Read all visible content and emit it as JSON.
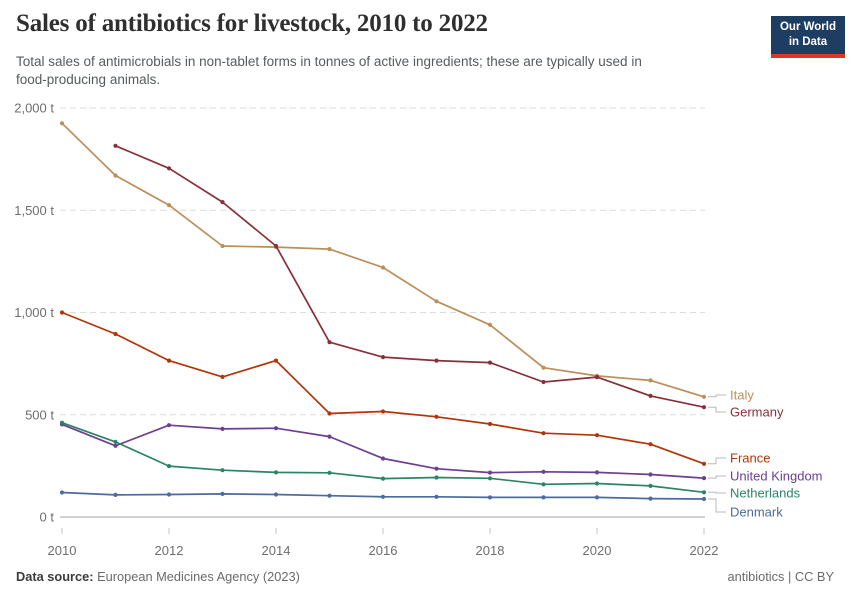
{
  "header": {
    "title": "Sales of antibiotics for livestock, 2010 to 2022",
    "subtitle_lines": [
      "Total sales of antimicrobials in non-tablet forms in tonnes of active ingredients; these are typically used in",
      "food-producing animals."
    ],
    "logo": {
      "line1": "Our World",
      "line2": "in Data",
      "bg_color": "#1d3d63",
      "accent_color": "#dc352c"
    }
  },
  "chart_data": {
    "type": "line",
    "title": "Sales of antibiotics for livestock, 2010 to 2022",
    "unit": "tonnes of active ingredients",
    "x": [
      2010,
      2011,
      2012,
      2013,
      2014,
      2015,
      2016,
      2017,
      2018,
      2019,
      2020,
      2021,
      2022
    ],
    "x_tick_labels": [
      "2010",
      "2012",
      "2014",
      "2016",
      "2018",
      "2020",
      "2022"
    ],
    "y_ticks": [
      {
        "value": 0,
        "label": "0 t"
      },
      {
        "value": 500,
        "label": "500 t"
      },
      {
        "value": 1000,
        "label": "1,000 t"
      },
      {
        "value": 1500,
        "label": "1,500 t"
      },
      {
        "value": 2000,
        "label": "2,000 t"
      }
    ],
    "ylim": [
      0,
      2000
    ],
    "grid": "horizontal-dashed",
    "legend_position": "right-of-line-ends",
    "series": [
      {
        "name": "Italy",
        "color": "#BC8E5A",
        "label_y": 395,
        "values": [
          1925,
          1670,
          1525,
          1325,
          1320,
          1310,
          1220,
          1055,
          940,
          730,
          690,
          668,
          588
        ]
      },
      {
        "name": "Germany",
        "color": "#883039",
        "label_y": 412,
        "values": [
          null,
          1815,
          1705,
          1540,
          1325,
          855,
          782,
          765,
          755,
          660,
          684,
          592,
          537
        ]
      },
      {
        "name": "France",
        "color": "#B13507",
        "label_y": 458,
        "values": [
          1000,
          895,
          765,
          685,
          765,
          506,
          516,
          490,
          455,
          410,
          400,
          356,
          260
        ]
      },
      {
        "name": "United Kingdom",
        "color": "#6D3E91",
        "label_y": 476,
        "values": [
          453,
          348,
          449,
          431,
          434,
          393,
          286,
          236,
          217,
          221,
          218,
          208,
          190
        ]
      },
      {
        "name": "Netherlands",
        "color": "#2C8465",
        "label_y": 493,
        "values": [
          461,
          367,
          249,
          229,
          218,
          216,
          188,
          193,
          189,
          160,
          164,
          152,
          121
        ]
      },
      {
        "name": "Denmark",
        "color": "#4C6A9C",
        "label_y": 512,
        "values": [
          120,
          108,
          110,
          113,
          110,
          104,
          99,
          99,
          96,
          96,
          96,
          90,
          88
        ]
      }
    ]
  },
  "footer": {
    "source_label": "Data source:",
    "source_value": "European Medicines Agency (2023)",
    "license": "antibiotics | CC BY"
  }
}
